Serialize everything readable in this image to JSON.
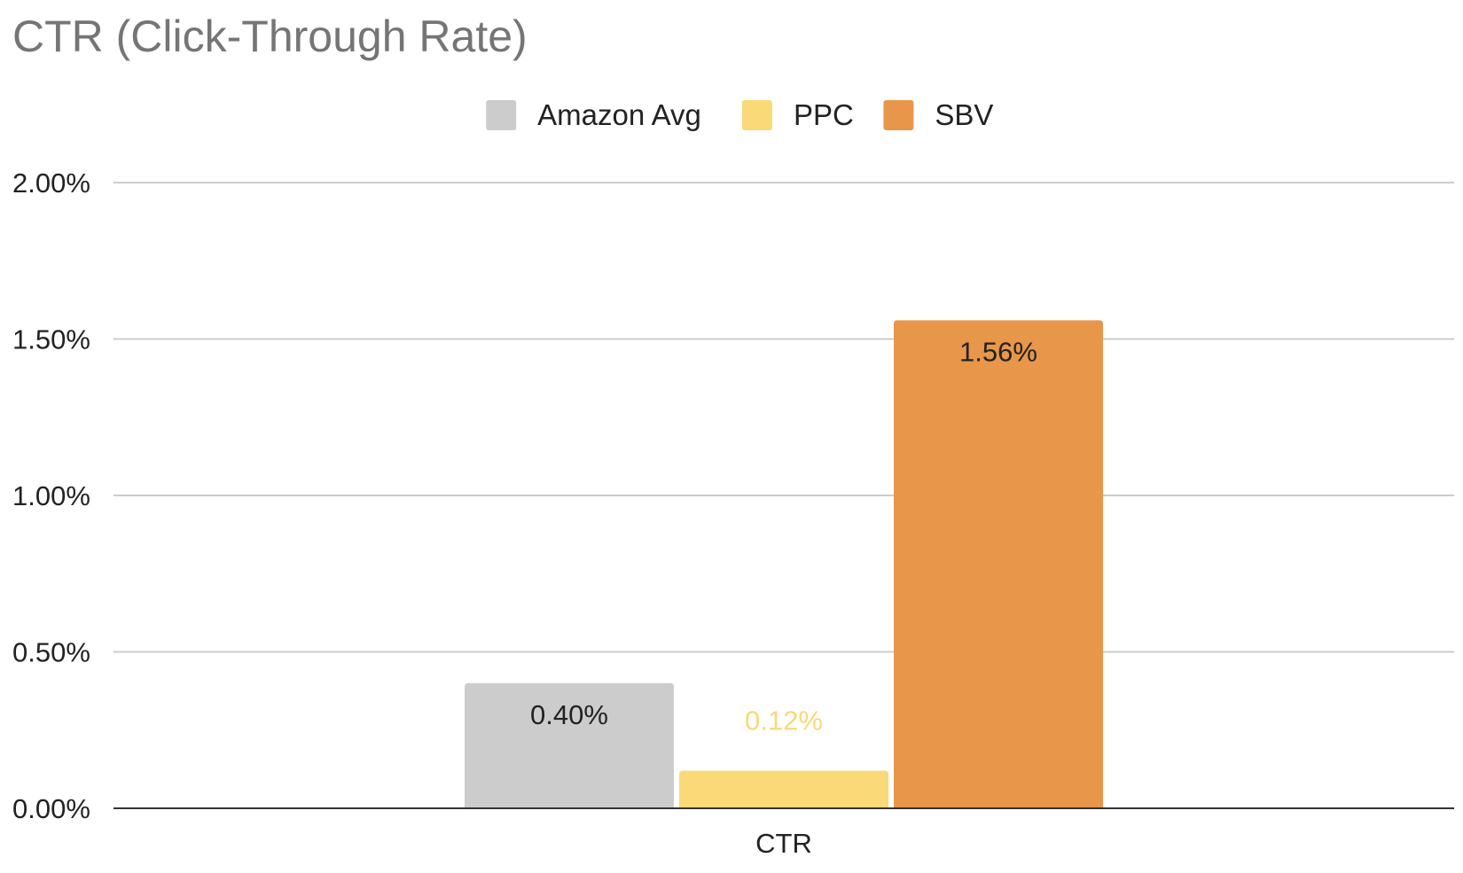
{
  "chart_data": {
    "type": "bar",
    "title": "CTR (Click-Through Rate)",
    "categories": [
      "CTR"
    ],
    "series": [
      {
        "name": "Amazon Avg",
        "values": [
          0.4
        ],
        "color": "#cccccc",
        "label": "0.40%",
        "label_color": "#222222"
      },
      {
        "name": "PPC",
        "values": [
          0.12
        ],
        "color": "#f9d978",
        "label": "0.12%",
        "label_color": "#f9d978"
      },
      {
        "name": "SBV",
        "values": [
          1.56
        ],
        "color": "#e8964a",
        "label": "1.56%",
        "label_color": "#222222"
      }
    ],
    "ylim": [
      0,
      2.0
    ],
    "yticks": [
      {
        "value": 0,
        "label": "0.00%"
      },
      {
        "value": 0.5,
        "label": "0.50%"
      },
      {
        "value": 1.0,
        "label": "1.00%"
      },
      {
        "value": 1.5,
        "label": "1.50%"
      },
      {
        "value": 2.0,
        "label": "2.00%"
      }
    ],
    "xlabel": "",
    "ylabel": "",
    "legend_position": "top-center",
    "grid": true
  }
}
